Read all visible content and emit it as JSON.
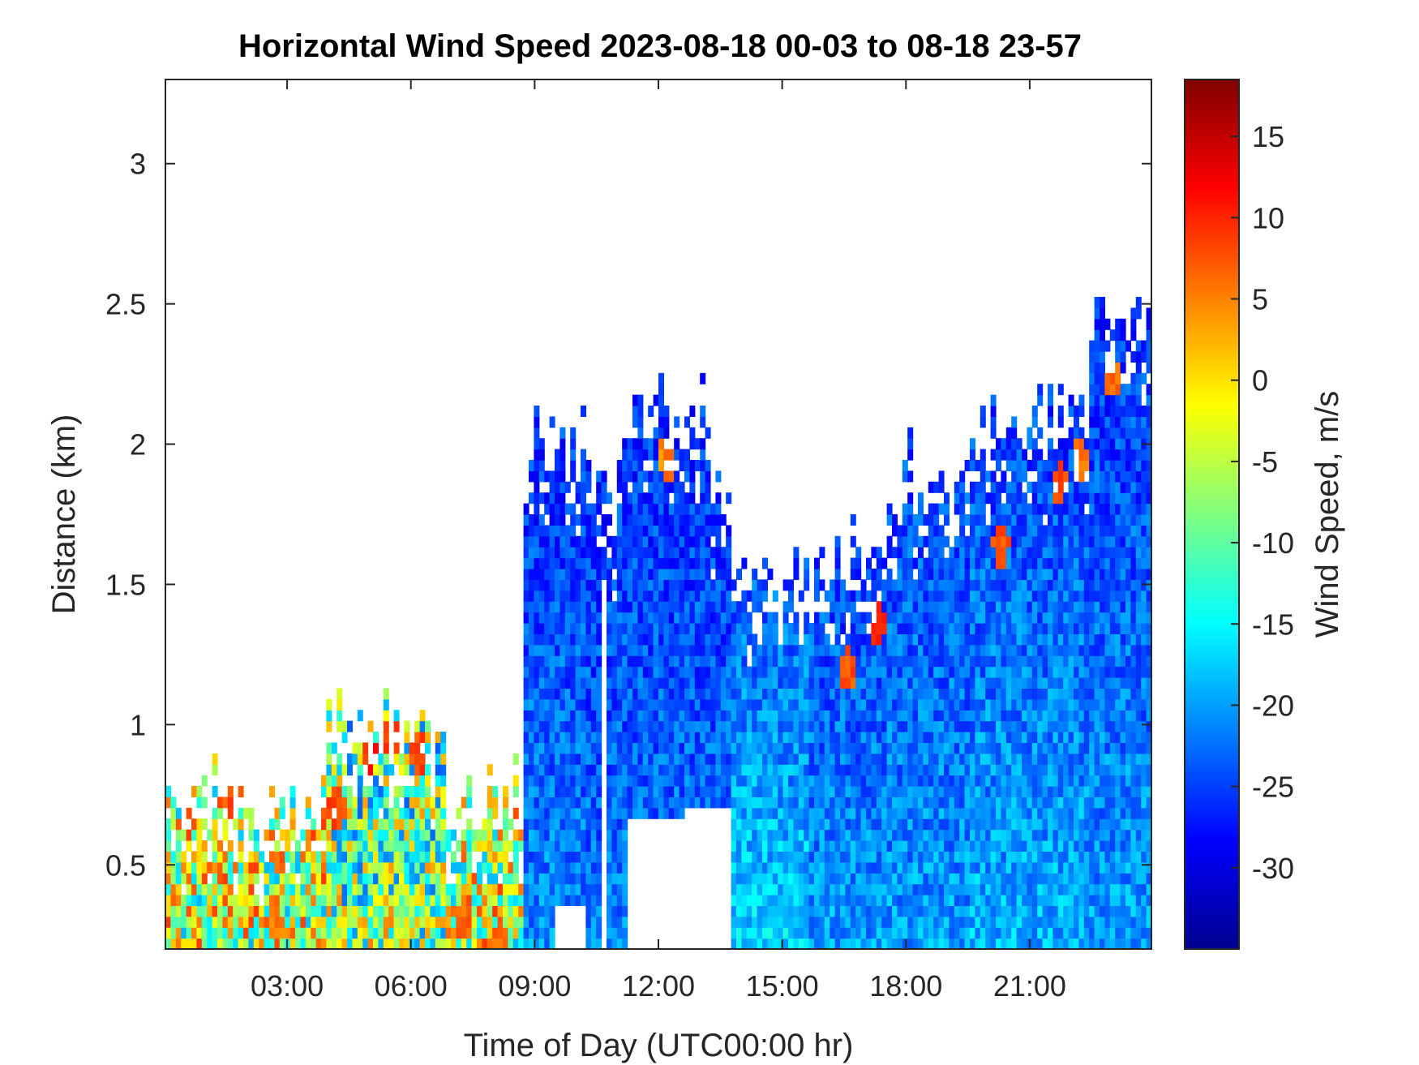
{
  "chart_data": {
    "type": "heatmap",
    "title": "Horizontal Wind Speed 2023-08-18 00-03 to 08-18 23-57",
    "xlabel": "Time of Day (UTC00:00 hr)",
    "ylabel": "Distance (km)",
    "xlim": [
      0.05,
      23.95
    ],
    "ylim": [
      0.2,
      3.3
    ],
    "x_ticks": [
      {
        "value": 3,
        "label": "03:00"
      },
      {
        "value": 6,
        "label": "06:00"
      },
      {
        "value": 9,
        "label": "09:00"
      },
      {
        "value": 12,
        "label": "12:00"
      },
      {
        "value": 15,
        "label": "15:00"
      },
      {
        "value": 18,
        "label": "18:00"
      },
      {
        "value": 21,
        "label": "21:00"
      }
    ],
    "y_ticks": [
      {
        "value": 0.5,
        "label": "0.5"
      },
      {
        "value": 1,
        "label": "1"
      },
      {
        "value": 1.5,
        "label": "1.5"
      },
      {
        "value": 2,
        "label": "2"
      },
      {
        "value": 2.5,
        "label": "2.5"
      },
      {
        "value": 3,
        "label": "3"
      }
    ],
    "colorbar": {
      "label": "Wind Speed, m/s",
      "colormap": "jet",
      "limits": [
        -35,
        18.5
      ],
      "ticks": [
        {
          "value": 15,
          "label": "15"
        },
        {
          "value": 10,
          "label": "10"
        },
        {
          "value": 5,
          "label": "5"
        },
        {
          "value": 0,
          "label": "0"
        },
        {
          "value": -5,
          "label": "-5"
        },
        {
          "value": -10,
          "label": "-10"
        },
        {
          "value": -15,
          "label": "-15"
        },
        {
          "value": -20,
          "label": "-20"
        },
        {
          "value": -25,
          "label": "-25"
        },
        {
          "value": -30,
          "label": "-30"
        }
      ]
    },
    "regions": [
      {
        "t_start": 0.05,
        "t_end": 8.75,
        "top_km": 0.75,
        "speed_bottom": -5,
        "speed_top": -5,
        "noise": 14
      },
      {
        "t_start": 3.9,
        "t_end": 6.9,
        "top_km": 1.0,
        "speed_bottom": -8,
        "speed_top": -10,
        "noise": 14
      },
      {
        "t_start": 8.75,
        "t_end": 10.3,
        "top_km": 2.0,
        "speed_bottom": -21,
        "speed_top": -26,
        "noise": 4
      },
      {
        "t_start": 10.3,
        "t_end": 11.0,
        "top_km": 1.85,
        "speed_bottom": -22,
        "speed_top": -26,
        "noise": 4
      },
      {
        "t_start": 11.0,
        "t_end": 13.2,
        "top_km": 2.1,
        "speed_bottom": -22,
        "speed_top": -26,
        "noise": 4
      },
      {
        "t_start": 13.2,
        "t_end": 13.8,
        "top_km": 1.85,
        "speed_bottom": -21,
        "speed_top": -26,
        "noise": 4
      },
      {
        "t_start": 13.8,
        "t_end": 15.6,
        "top_km": 1.55,
        "speed_bottom": -17,
        "speed_top": -24,
        "noise": 4
      },
      {
        "t_start": 15.6,
        "t_end": 17.5,
        "top_km": 1.6,
        "speed_bottom": -20,
        "speed_top": -25,
        "noise": 4
      },
      {
        "t_start": 17.5,
        "t_end": 19.5,
        "top_km": 1.9,
        "speed_bottom": -20,
        "speed_top": -25,
        "noise": 4
      },
      {
        "t_start": 19.5,
        "t_end": 22.5,
        "top_km": 2.1,
        "speed_bottom": -19,
        "speed_top": -25,
        "noise": 4
      },
      {
        "t_start": 22.5,
        "t_end": 23.95,
        "top_km": 2.5,
        "speed_bottom": -20,
        "speed_top": -26,
        "noise": 4
      }
    ],
    "gaps": [
      {
        "t_start": 9.45,
        "t_end": 10.2,
        "bottom_km": 0.2,
        "top_km": 0.35
      },
      {
        "t_start": 10.6,
        "t_end": 10.75,
        "bottom_km": 0.2,
        "top_km": 1.5
      },
      {
        "t_start": 11.2,
        "t_end": 13.4,
        "bottom_km": 0.2,
        "top_km": 0.65
      },
      {
        "t_start": 12.6,
        "t_end": 13.75,
        "bottom_km": 0.2,
        "top_km": 0.7
      }
    ],
    "hotspots": [
      {
        "t": 0.6,
        "km": 0.68,
        "speed": 8
      },
      {
        "t": 1.6,
        "km": 0.75,
        "speed": 8
      },
      {
        "t": 2.7,
        "km": 0.3,
        "speed": 6
      },
      {
        "t": 4.2,
        "km": 0.7,
        "speed": 8
      },
      {
        "t": 5.0,
        "km": 0.9,
        "speed": 10
      },
      {
        "t": 5.5,
        "km": 0.95,
        "speed": 8
      },
      {
        "t": 6.2,
        "km": 0.9,
        "speed": 8
      },
      {
        "t": 7.3,
        "km": 0.3,
        "speed": 6
      },
      {
        "t": 8.2,
        "km": 0.22,
        "speed": 6
      },
      {
        "t": 12.2,
        "km": 1.95,
        "speed": 5
      },
      {
        "t": 16.6,
        "km": 1.2,
        "speed": 8
      },
      {
        "t": 17.3,
        "km": 1.35,
        "speed": 10
      },
      {
        "t": 20.3,
        "km": 1.65,
        "speed": 8
      },
      {
        "t": 21.7,
        "km": 1.85,
        "speed": 8
      },
      {
        "t": 22.2,
        "km": 1.95,
        "speed": 6
      },
      {
        "t": 23.0,
        "km": 2.25,
        "speed": 6
      }
    ]
  }
}
